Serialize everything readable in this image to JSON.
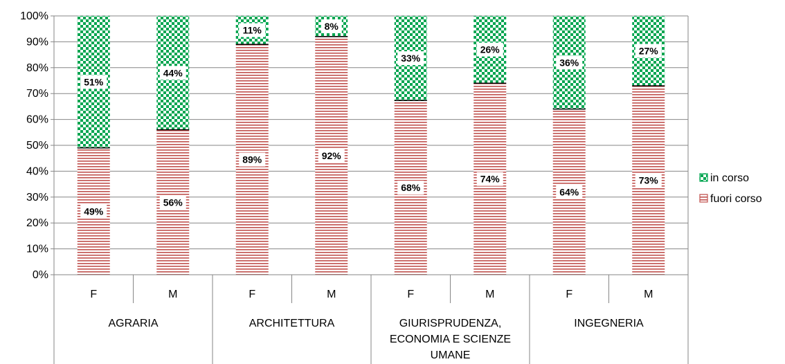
{
  "chart_data": {
    "type": "bar",
    "stacked": true,
    "percent": true,
    "groups": [
      {
        "label": "AGRARIA",
        "categories": [
          "F",
          "M"
        ]
      },
      {
        "label": "ARCHITETTURA",
        "categories": [
          "F",
          "M"
        ]
      },
      {
        "label": "GIURISPRUDENZA, ECONOMIA E SCIENZE UMANE",
        "label_lines": [
          "GIURISPRUDENZA,",
          "ECONOMIA E SCIENZE",
          "UMANE"
        ],
        "categories": [
          "F",
          "M"
        ]
      },
      {
        "label": "INGEGNERIA",
        "categories": [
          "F",
          "M"
        ]
      }
    ],
    "series": [
      {
        "name": "fuori corso",
        "color": "#c0504d",
        "pattern": "horizontal-lines",
        "values": [
          49,
          56,
          89,
          92,
          68,
          74,
          64,
          73
        ],
        "labels": [
          "49%",
          "56%",
          "89%",
          "92%",
          "68%",
          "74%",
          "64%",
          "73%"
        ]
      },
      {
        "name": "in corso",
        "color": "#00a550",
        "pattern": "checkerboard",
        "values": [
          51,
          44,
          11,
          8,
          33,
          26,
          36,
          27
        ],
        "labels": [
          "51%",
          "44%",
          "11%",
          "8%",
          "33%",
          "26%",
          "36%",
          "27%"
        ]
      }
    ],
    "y_ticks": [
      "0%",
      "10%",
      "20%",
      "30%",
      "40%",
      "50%",
      "60%",
      "70%",
      "80%",
      "90%",
      "100%"
    ],
    "ylim": [
      0,
      100
    ],
    "grid": true,
    "legend": {
      "position": "right",
      "order": [
        "in corso",
        "fuori corso"
      ]
    }
  }
}
